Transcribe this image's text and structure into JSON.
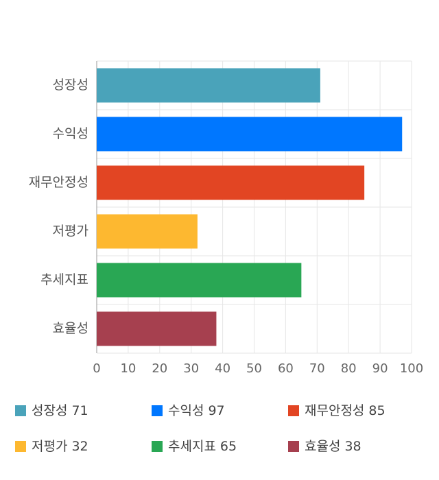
{
  "chart_data": {
    "type": "bar",
    "orientation": "horizontal",
    "categories": [
      "성장성",
      "수익성",
      "재무안정성",
      "저평가",
      "추세지표",
      "효율성"
    ],
    "values": [
      71,
      97,
      85,
      32,
      65,
      38
    ],
    "colors": [
      "#4aa3ba",
      "#0077ff",
      "#e24523",
      "#fdb830",
      "#29a754",
      "#a6404f"
    ],
    "xlim": [
      0,
      100
    ],
    "xticks": [
      0,
      10,
      20,
      30,
      40,
      50,
      60,
      70,
      80,
      90,
      100
    ],
    "grid": true
  }
}
